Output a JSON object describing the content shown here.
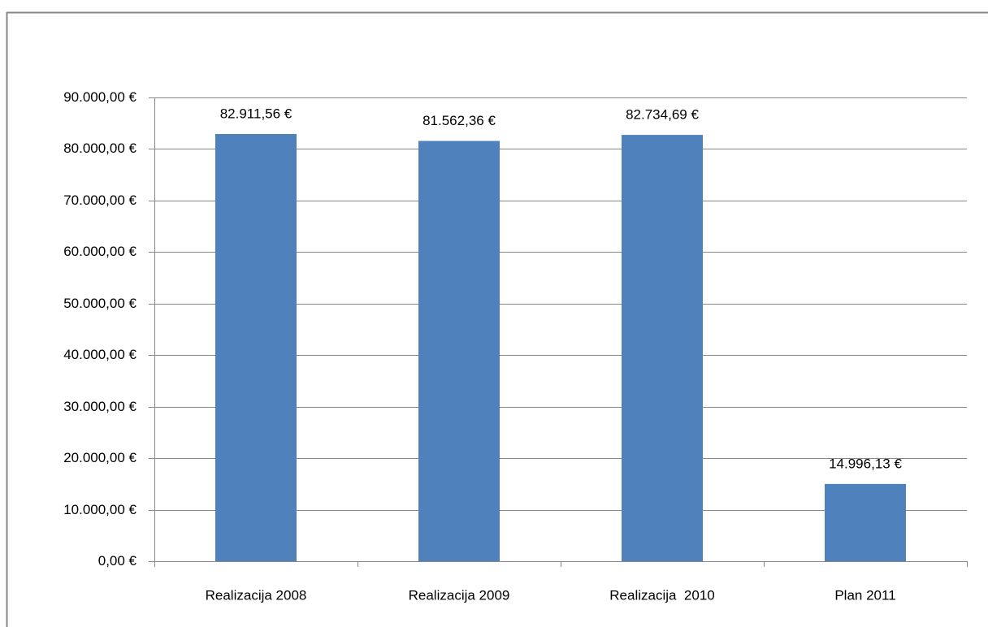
{
  "chart_data": {
    "type": "bar",
    "categories": [
      "Realizacija 2008",
      "Realizacija 2009",
      "Realizacija  2010",
      "Plan 2011"
    ],
    "values": [
      82911.56,
      81562.36,
      82734.69,
      14996.13
    ],
    "value_labels": [
      "82.911,56 €",
      "81.562,36 €",
      "82.734,69 €",
      "14.996,13 €"
    ],
    "color": "#4f81bd",
    "ylim": [
      0,
      90000
    ],
    "yticks": [
      {
        "value": 0,
        "label": "0,00 €"
      },
      {
        "value": 10000,
        "label": "10.000,00 €"
      },
      {
        "value": 20000,
        "label": "20.000,00 €"
      },
      {
        "value": 30000,
        "label": "30.000,00 €"
      },
      {
        "value": 40000,
        "label": "40.000,00 €"
      },
      {
        "value": 50000,
        "label": "50.000,00 €"
      },
      {
        "value": 60000,
        "label": "60.000,00 €"
      },
      {
        "value": 70000,
        "label": "70.000,00 €"
      },
      {
        "value": 80000,
        "label": "80.000,00 €"
      },
      {
        "value": 90000,
        "label": "90.000,00 €"
      }
    ],
    "grid": true
  }
}
